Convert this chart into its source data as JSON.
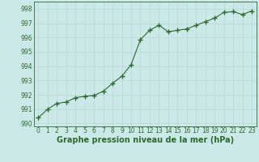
{
  "x": [
    0,
    1,
    2,
    3,
    4,
    5,
    6,
    7,
    8,
    9,
    10,
    11,
    12,
    13,
    14,
    15,
    16,
    17,
    18,
    19,
    20,
    21,
    22,
    23
  ],
  "y": [
    990.4,
    991.0,
    991.4,
    991.5,
    991.8,
    991.9,
    991.95,
    992.25,
    992.8,
    993.3,
    994.1,
    995.85,
    996.5,
    996.85,
    996.4,
    996.5,
    996.6,
    996.85,
    997.1,
    997.35,
    997.75,
    997.8,
    997.6,
    997.85
  ],
  "line_color": "#2d6a2d",
  "marker": "+",
  "marker_size": 4.0,
  "background_color": "#cce9e9",
  "grid_color": "#c0d8d8",
  "ylabel_ticks": [
    990,
    991,
    992,
    993,
    994,
    995,
    996,
    997,
    998
  ],
  "xlabel_ticks": [
    0,
    1,
    2,
    3,
    4,
    5,
    6,
    7,
    8,
    9,
    10,
    11,
    12,
    13,
    14,
    15,
    16,
    17,
    18,
    19,
    20,
    21,
    22,
    23
  ],
  "xlabel": "Graphe pression niveau de la mer (hPa)",
  "ylim": [
    989.8,
    998.5
  ],
  "xlim": [
    -0.5,
    23.5
  ],
  "tick_color": "#2d6a2d",
  "tick_fontsize": 5.5,
  "xlabel_fontsize": 7
}
